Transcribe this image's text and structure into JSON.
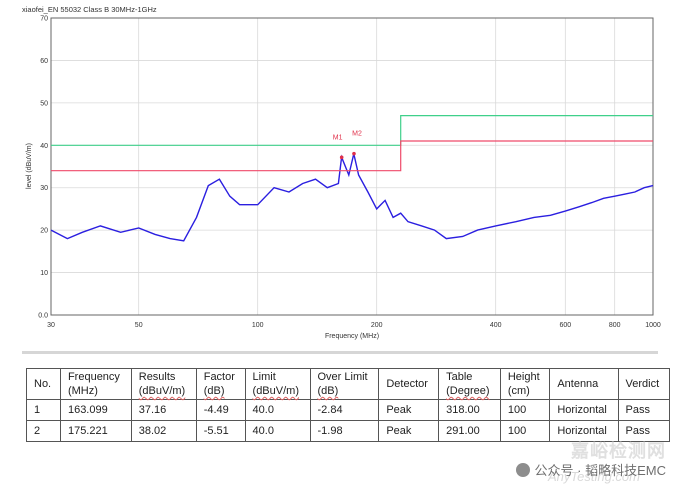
{
  "chart_data": {
    "type": "line",
    "title": "xiaofei_EN 55032 Class B 30MHz-1GHz",
    "xlabel": "Frequency (MHz)",
    "ylabel": "level (dBuV/m)",
    "xscale": "log",
    "xlim": [
      30,
      1000
    ],
    "ylim": [
      0,
      70
    ],
    "x_ticks": [
      30,
      50,
      100,
      200,
      400,
      600,
      800,
      1000
    ],
    "x_tick_labels": [
      "30",
      "50",
      "100",
      "200",
      "400",
      "600",
      "800",
      "1000"
    ],
    "y_ticks": [
      0,
      10,
      20,
      30,
      40,
      50,
      60,
      70
    ],
    "y_tick_labels": [
      "0.0",
      "10",
      "20",
      "30",
      "40",
      "50",
      "60",
      "70"
    ],
    "grid": true,
    "series": [
      {
        "name": "",
        "color": "#2b1fe0",
        "x": [
          30,
          33,
          36,
          40,
          45,
          50,
          55,
          60,
          65,
          70,
          75,
          80,
          85,
          90,
          100,
          110,
          120,
          130,
          140,
          150,
          160,
          163,
          170,
          175,
          180,
          190,
          200,
          210,
          220,
          230,
          240,
          260,
          280,
          300,
          330,
          360,
          400,
          450,
          500,
          550,
          600,
          650,
          700,
          750,
          800,
          850,
          900,
          950,
          1000
        ],
        "y": [
          20,
          18,
          19.5,
          21,
          19.5,
          20.5,
          19,
          18,
          17.5,
          23,
          30.5,
          32,
          28,
          26,
          26,
          30,
          29,
          31,
          32,
          30,
          31,
          37.2,
          33,
          38,
          33,
          29,
          25,
          27,
          23,
          24,
          22,
          21,
          20,
          18,
          18.5,
          20,
          21,
          22,
          23,
          23.5,
          24.5,
          25.5,
          26.5,
          27.5,
          28,
          28.5,
          29,
          30,
          30.5
        ]
      },
      {
        "name": "",
        "color": "#3fd08a",
        "x": [
          30,
          230,
          230,
          1000
        ],
        "y": [
          40,
          40,
          47,
          47
        ]
      },
      {
        "name": "",
        "color": "#ef4a6a",
        "x": [
          30,
          230,
          230,
          1000
        ],
        "y": [
          34,
          34,
          41,
          41
        ]
      }
    ],
    "markers": [
      {
        "label": "M1",
        "x": 163.099,
        "y": 37.16
      },
      {
        "label": "M2",
        "x": 175.221,
        "y": 38.02
      }
    ]
  },
  "table": {
    "headers": [
      [
        "No.",
        ""
      ],
      [
        "Frequency",
        "(MHz)"
      ],
      [
        "Results",
        "(dBuV/m)"
      ],
      [
        "Factor",
        "(dB)"
      ],
      [
        "Limit",
        "(dBuV/m)"
      ],
      [
        "Over Limit",
        "(dB)"
      ],
      [
        "Detector",
        ""
      ],
      [
        "Table",
        "(Degree)"
      ],
      [
        "Height",
        "(cm)"
      ],
      [
        "Antenna",
        ""
      ],
      [
        "Verdict",
        ""
      ]
    ],
    "rows": [
      [
        "1",
        "163.099",
        "37.16",
        "-4.49",
        "40.0",
        "-2.84",
        "Peak",
        "318.00",
        "100",
        "Horizontal",
        "Pass"
      ],
      [
        "2",
        "175.221",
        "38.02",
        "-5.51",
        "40.0",
        "-1.98",
        "Peak",
        "291.00",
        "100",
        "Horizontal",
        "Pass"
      ]
    ]
  },
  "watermark": {
    "label": "公众号 · 韬略科技EMC",
    "ghost": "嘉峪检测网",
    "ghost2": "AnyTesting.com"
  }
}
